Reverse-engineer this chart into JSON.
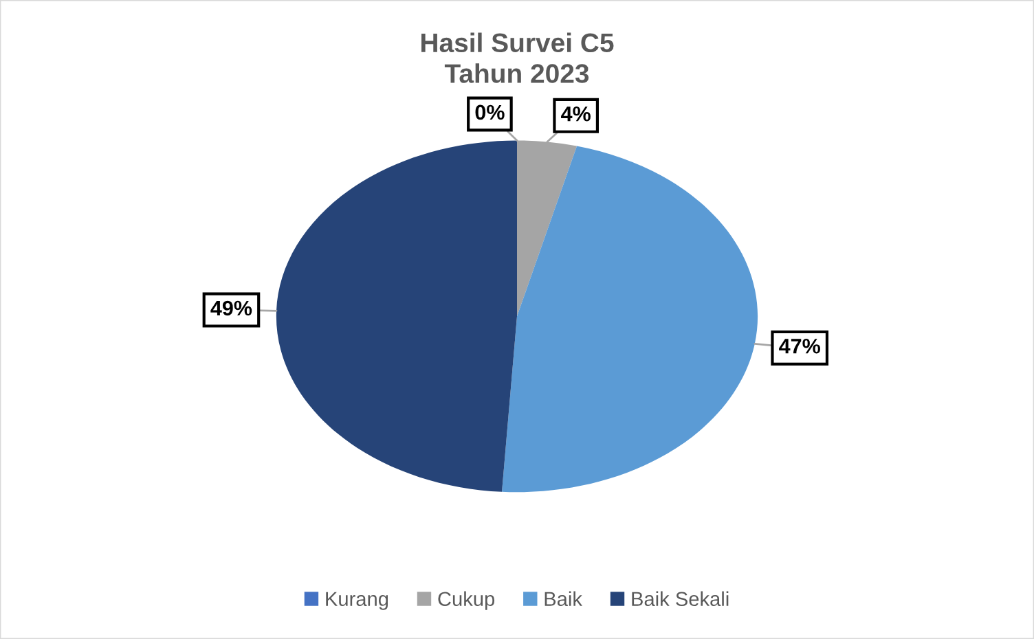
{
  "chart_data": {
    "type": "pie",
    "title": "Hasil Survei C5\nTahun 2023",
    "categories": [
      "Kurang",
      "Cukup",
      "Baik",
      "Baik Sekali"
    ],
    "values": [
      0,
      4,
      47,
      49
    ],
    "colors": [
      "#4472c4",
      "#a5a5a5",
      "#5b9bd5",
      "#264478"
    ],
    "value_labels": [
      "0%",
      "4%",
      "47%",
      "49%"
    ],
    "legend": "bottom"
  }
}
